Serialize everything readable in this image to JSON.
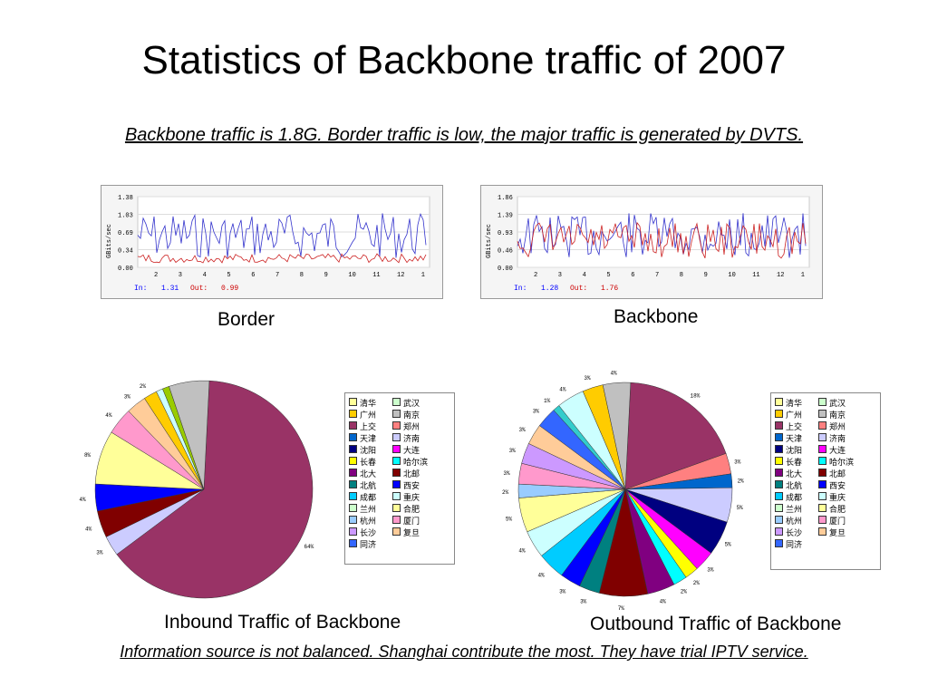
{
  "title": "Statistics of Backbone traffic of 2007",
  "note_top": "Backbone traffic is 1.8G. Border traffic is low, the major traffic is generated by DVTS.",
  "note_bottom": "Information source is not balanced. Shanghai contribute the most. They have trial IPTV service.",
  "captions": {
    "border": "Border",
    "backbone": "Backbone",
    "inbound": "Inbound Traffic of Backbone",
    "outbound": "Outbound Traffic of Backbone"
  },
  "chart_data": [
    {
      "type": "line",
      "yticks": [
        "1.38",
        "1.03",
        "0.69",
        "0.34",
        "0.00"
      ],
      "xticks": [
        "2",
        "3",
        "4",
        "5",
        "6",
        "7",
        "8",
        "9",
        "10",
        "11",
        "12",
        "1"
      ],
      "ylabel": "GBits/sec",
      "in_label": "In:",
      "in_value": "1.31",
      "out_label": "Out:",
      "out_value": "0.99"
    },
    {
      "type": "line",
      "yticks": [
        "1.86",
        "1.39",
        "0.93",
        "0.46",
        "0.00"
      ],
      "xticks": [
        "2",
        "3",
        "4",
        "5",
        "6",
        "7",
        "8",
        "9",
        "10",
        "11",
        "12",
        "1"
      ],
      "ylabel": "GBits/sec",
      "in_label": "In:",
      "in_value": "1.28",
      "out_label": "Out:",
      "out_value": "1.76"
    },
    {
      "type": "pie",
      "name": "inbound",
      "values": [
        64,
        3,
        4,
        4,
        8,
        4,
        3,
        2,
        1,
        1,
        6
      ],
      "labels": [
        "64%",
        "3%",
        "4%",
        "4%",
        "8%",
        "4%",
        "3%",
        "2%",
        "",
        "",
        ""
      ],
      "colors": [
        "#993366",
        "#ccccff",
        "#800000",
        "#0000ff",
        "#ffff99",
        "#ff99cc",
        "#ffcc99",
        "#ffcc00",
        "#ccffff",
        "#99cc00",
        "#c0c0c0"
      ]
    },
    {
      "type": "pie",
      "name": "outbound",
      "values": [
        18,
        3,
        2,
        5,
        5,
        3,
        2,
        2,
        4,
        7,
        3,
        3,
        4,
        4,
        5,
        2,
        3,
        3,
        3,
        3,
        1,
        4,
        3,
        4
      ],
      "labels": [
        "18%",
        "3%",
        "2%",
        "5%",
        "5%",
        "3%",
        "2%",
        "2%",
        "4%",
        "7%",
        "3%",
        "3%",
        "4%",
        "4%",
        "5%",
        "2%",
        "3%",
        "3%",
        "3%",
        "3%",
        "1%",
        "4%",
        "3%",
        "4%"
      ],
      "colors": [
        "#993366",
        "#ff8080",
        "#0066cc",
        "#ccccff",
        "#000080",
        "#ff00ff",
        "#ffff00",
        "#00ffff",
        "#800080",
        "#800000",
        "#008080",
        "#0000ff",
        "#00ccff",
        "#ccffff",
        "#ffff99",
        "#99ccff",
        "#ff99cc",
        "#cc99ff",
        "#ffcc99",
        "#3366ff",
        "#33cccc",
        "#ccffff",
        "#ffcc00",
        "#c0c0c0"
      ]
    }
  ],
  "legend": [
    "清华",
    "武汉",
    "广州",
    "南京",
    "上交",
    "郑州",
    "天津",
    "济南",
    "沈阳",
    "大连",
    "长春",
    "哈尔滨",
    "北大",
    "北邮",
    "北航",
    "西安",
    "成都",
    "重庆",
    "兰州",
    "合肥",
    "杭州",
    "厦门",
    "长沙",
    "复旦",
    "同济"
  ],
  "legend_colors": [
    "#ffff99",
    "#ccffcc",
    "#ffcc00",
    "#c0c0c0",
    "#993366",
    "#ff8080",
    "#0066cc",
    "#ccccff",
    "#000080",
    "#ff00ff",
    "#ffff00",
    "#00ffff",
    "#800080",
    "#800000",
    "#008080",
    "#0000ff",
    "#00ccff",
    "#ccffff",
    "#ccffcc",
    "#ffff99",
    "#99ccff",
    "#ff99cc",
    "#cc99ff",
    "#ffcc99",
    "#3366ff"
  ]
}
